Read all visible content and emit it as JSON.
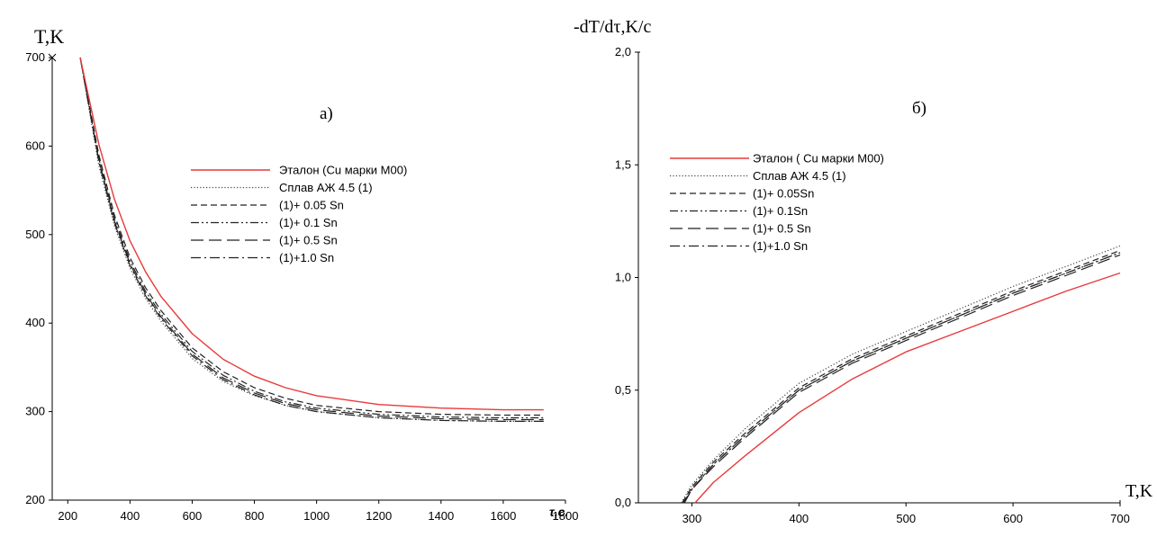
{
  "chart_data": [
    {
      "type": "line",
      "panel_label": "a)",
      "ylabel": "T,K",
      "xlabel": "τ,c.",
      "xlim": [
        150,
        1800
      ],
      "ylim": [
        200,
        700
      ],
      "xticks": [
        "200",
        "400",
        "600",
        "800",
        "1000",
        "1200",
        "1400",
        "1600",
        "1800"
      ],
      "yticks": [
        "200",
        "300",
        "400",
        "500",
        "600",
        "700"
      ],
      "grid": false,
      "legend_position": "center-right",
      "series": [
        {
          "name": "Эталон (Cu марки М00)",
          "color": "#e8393a",
          "dash": "solid",
          "x": [
            240,
            300,
            350,
            400,
            450,
            500,
            600,
            700,
            800,
            900,
            1000,
            1200,
            1400,
            1600,
            1730
          ],
          "y": [
            700,
            602,
            540,
            493,
            458,
            430,
            388,
            359,
            340,
            327,
            318,
            308,
            304,
            302,
            302
          ]
        },
        {
          "name": "Сплав АЖ 4.5 (1)",
          "color": "#444444",
          "dash": "dotted",
          "x": [
            240,
            300,
            350,
            400,
            450,
            500,
            600,
            700,
            800,
            900,
            1000,
            1200,
            1400,
            1600,
            1730
          ],
          "y": [
            700,
            578,
            510,
            462,
            428,
            402,
            360,
            334,
            318,
            307,
            300,
            293,
            290,
            289,
            289
          ]
        },
        {
          "name": "(1)+ 0.05 Sn",
          "color": "#222222",
          "dash": "dashed",
          "x": [
            240,
            300,
            350,
            400,
            450,
            500,
            600,
            700,
            800,
            900,
            1000,
            1200,
            1400,
            1600,
            1730
          ],
          "y": [
            700,
            590,
            522,
            474,
            440,
            414,
            372,
            345,
            327,
            315,
            307,
            300,
            297,
            296,
            296
          ]
        },
        {
          "name": "(1)+ 0.1 Sn",
          "color": "#222222",
          "dash": "dash-dot-dot",
          "x": [
            240,
            300,
            350,
            400,
            450,
            500,
            600,
            700,
            800,
            900,
            1000,
            1200,
            1400,
            1600,
            1730
          ],
          "y": [
            700,
            586,
            518,
            470,
            436,
            410,
            368,
            341,
            323,
            311,
            304,
            297,
            294,
            293,
            293
          ]
        },
        {
          "name": "(1)+ 0.5 Sn",
          "color": "#222222",
          "dash": "long-dash",
          "x": [
            240,
            300,
            350,
            400,
            450,
            500,
            600,
            700,
            800,
            900,
            1000,
            1200,
            1400,
            1600,
            1730
          ],
          "y": [
            700,
            584,
            515,
            467,
            433,
            407,
            365,
            338,
            321,
            309,
            302,
            295,
            292,
            291,
            291
          ]
        },
        {
          "name": "(1)+1.0 Sn",
          "color": "#222222",
          "dash": "dash-dot",
          "x": [
            240,
            300,
            350,
            400,
            450,
            500,
            600,
            700,
            800,
            900,
            1000,
            1200,
            1400,
            1600,
            1730
          ],
          "y": [
            700,
            582,
            513,
            465,
            431,
            405,
            363,
            336,
            319,
            307,
            300,
            293,
            290,
            289,
            289
          ]
        }
      ]
    },
    {
      "type": "line",
      "panel_label": "б)",
      "ylabel": "-dT/dτ,K/c",
      "xlabel": "T,K",
      "xlim": [
        250,
        700
      ],
      "ylim": [
        0.0,
        2.0
      ],
      "xticks": [
        "300",
        "400",
        "500",
        "600",
        "700"
      ],
      "yticks": [
        "0,0",
        "0,5",
        "1,0",
        "1,5",
        "2,0"
      ],
      "grid": false,
      "legend_position": "upper-left",
      "series": [
        {
          "name": "Эталон ( Cu марки М00)",
          "color": "#e8393a",
          "dash": "solid",
          "x": [
            303,
            320,
            350,
            400,
            450,
            500,
            550,
            600,
            650,
            700
          ],
          "y": [
            0.0,
            0.09,
            0.21,
            0.4,
            0.55,
            0.67,
            0.76,
            0.85,
            0.94,
            1.02
          ]
        },
        {
          "name": "Сплав АЖ 4.5 (1)",
          "color": "#444444",
          "dash": "dotted",
          "x": [
            290,
            300,
            320,
            350,
            400,
            450,
            500,
            550,
            600,
            650,
            700
          ],
          "y": [
            0.0,
            0.08,
            0.19,
            0.33,
            0.53,
            0.66,
            0.76,
            0.86,
            0.96,
            1.05,
            1.14
          ]
        },
        {
          "name": "(1)+ 0.05Sn",
          "color": "#222222",
          "dash": "dashed",
          "x": [
            291,
            300,
            320,
            350,
            400,
            450,
            500,
            550,
            600,
            650,
            700
          ],
          "y": [
            0.0,
            0.07,
            0.18,
            0.31,
            0.51,
            0.64,
            0.74,
            0.84,
            0.94,
            1.03,
            1.12
          ]
        },
        {
          "name": "(1)+ 0.1Sn",
          "color": "#222222",
          "dash": "dash-dot-dot",
          "x": [
            292,
            300,
            320,
            350,
            400,
            450,
            500,
            550,
            600,
            650,
            700
          ],
          "y": [
            0.0,
            0.06,
            0.17,
            0.3,
            0.5,
            0.63,
            0.73,
            0.83,
            0.93,
            1.02,
            1.11
          ]
        },
        {
          "name": "(1)+ 0.5 Sn",
          "color": "#222222",
          "dash": "long-dash",
          "x": [
            293,
            300,
            320,
            350,
            400,
            450,
            500,
            550,
            600,
            650,
            700
          ],
          "y": [
            0.0,
            0.06,
            0.16,
            0.29,
            0.49,
            0.62,
            0.72,
            0.82,
            0.92,
            1.01,
            1.1
          ]
        },
        {
          "name": "(1)+1.0 Sn",
          "color": "#222222",
          "dash": "dash-dot",
          "x": [
            293,
            300,
            320,
            350,
            400,
            450,
            500,
            550,
            600,
            650,
            700
          ],
          "y": [
            0.0,
            0.06,
            0.17,
            0.3,
            0.5,
            0.63,
            0.73,
            0.83,
            0.93,
            1.02,
            1.11
          ]
        }
      ]
    }
  ]
}
